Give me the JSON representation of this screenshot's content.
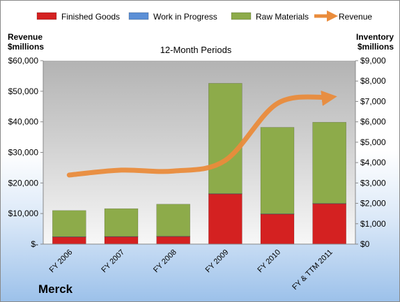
{
  "chart_data": {
    "type": "bar",
    "subtitle": "12-Month Periods",
    "company": "Merck",
    "left_axis_title": [
      "Revenue",
      "$millions"
    ],
    "right_axis_title": [
      "Inventory",
      "$millions"
    ],
    "categories": [
      "FY 2006",
      "FY 2007",
      "FY 2008",
      "FY 2009",
      "FY 2010",
      "FY & TTM 2011"
    ],
    "series": [
      {
        "name": "Finished Goods",
        "axis": "right",
        "stacked": true,
        "color": "#d42121",
        "values": [
          360,
          370,
          380,
          2470,
          1480,
          1990
        ]
      },
      {
        "name": "Work in Progress",
        "axis": "right",
        "stacked": true,
        "color": "#5b8fd6",
        "values": [
          5,
          5,
          5,
          5,
          5,
          5
        ]
      },
      {
        "name": "Raw Materials",
        "axis": "right",
        "stacked": true,
        "color": "#8dab4a",
        "values": [
          1285,
          1365,
          1575,
          5415,
          4245,
          3985
        ]
      },
      {
        "name": "Revenue",
        "axis": "left",
        "type": "line",
        "color": "#ea8c3c",
        "values": [
          22600,
          24200,
          23900,
          27400,
          46000,
          48000
        ]
      }
    ],
    "left_axis": {
      "range": [
        0,
        60000
      ],
      "ticks": [
        "$-",
        "$10,000",
        "$20,000",
        "$30,000",
        "$40,000",
        "$50,000",
        "$60,000"
      ]
    },
    "right_axis": {
      "range": [
        0,
        9000
      ],
      "ticks": [
        "$0",
        "$1,000",
        "$2,000",
        "$3,000",
        "$4,000",
        "$5,000",
        "$6,000",
        "$7,000",
        "$8,000",
        "$9,000"
      ]
    },
    "legend_position": "top",
    "grid": false
  }
}
